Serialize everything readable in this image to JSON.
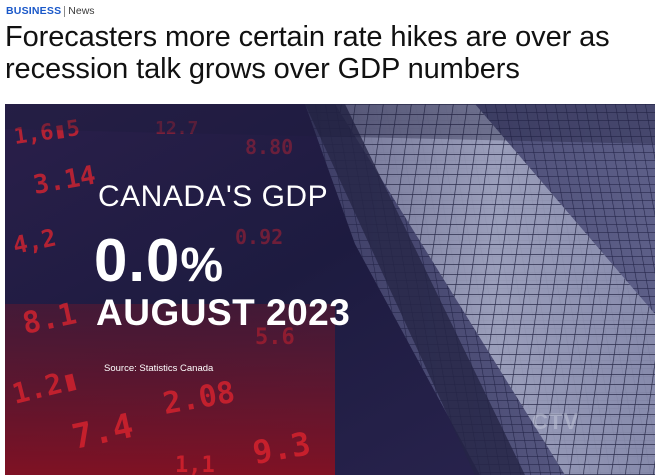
{
  "breadcrumb": {
    "section": "BUSINESS",
    "subsection": "News"
  },
  "headline": "Forecasters more certain rate hikes are over as recession talk grows over GDP numbers",
  "hero": {
    "label": "CANADA'S GDP",
    "value": "0.0",
    "value_unit": "%",
    "period": "AUGUST 2023",
    "source": "Source: Statistics Canada",
    "watermark": "CTV"
  },
  "colors": {
    "brand_blue": "#1a58c9",
    "ticker_red": "#d8202a",
    "background_navy": "#1c1a3e"
  }
}
